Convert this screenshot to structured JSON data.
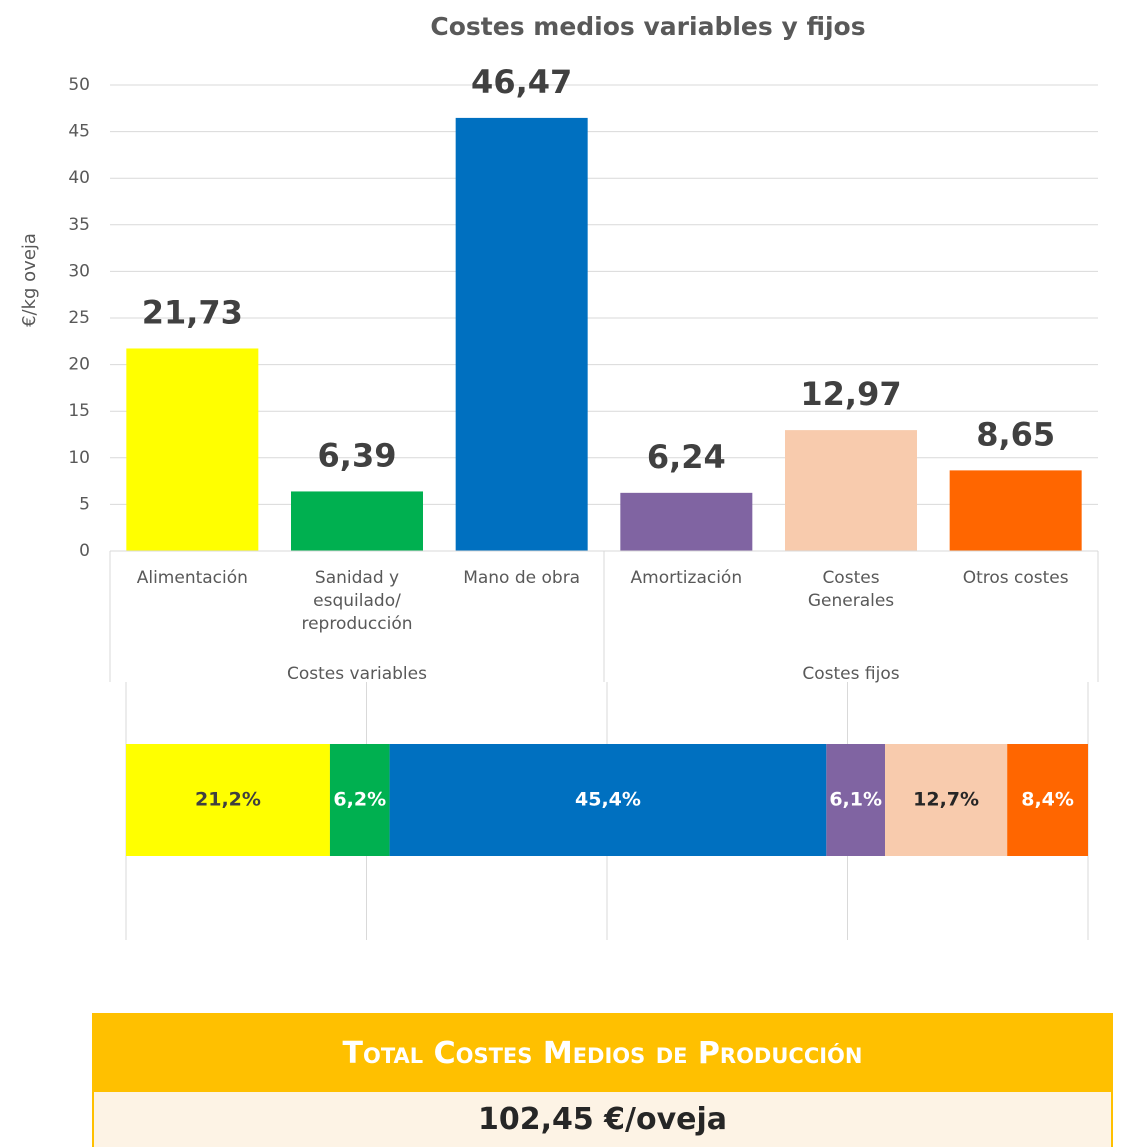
{
  "chart_data": [
    {
      "type": "bar",
      "title": "Costes medios variables y fijos",
      "y_label": "€/kg oveja",
      "categories": [
        "Alimentación",
        "Sanidad y\nesquilado/\nreproducción",
        "Mano de obra",
        "Amortización",
        "Costes\nGenerales",
        "Otros costes"
      ],
      "values": [
        21.73,
        6.39,
        46.47,
        6.24,
        12.97,
        8.65
      ],
      "value_labels": [
        "21,73",
        "6,39",
        "46,47",
        "6,24",
        "12,97",
        "8,65"
      ],
      "colors": [
        "#FFFF00",
        "#00B050",
        "#0070C0",
        "#8064A2",
        "#F8CBAD",
        "#FF6600"
      ],
      "groups": [
        "Costes variables",
        "Costes fijos"
      ],
      "ylim": [
        0,
        50
      ],
      "yticks": [
        0,
        5,
        10,
        15,
        20,
        25,
        30,
        35,
        40,
        45,
        50
      ],
      "grid": true
    },
    {
      "type": "stacked_hbar",
      "series": [
        {
          "color": "#FFFF00",
          "label_color": "#404040",
          "values": [
            21.2
          ],
          "value_labels": [
            "21,2%"
          ]
        },
        {
          "color": "#00B050",
          "label_color": "#ffffff",
          "values": [
            6.2
          ],
          "value_labels": [
            "6,2%"
          ]
        },
        {
          "color": "#0070C0",
          "label_color": "#ffffff",
          "values": [
            45.4
          ],
          "value_labels": [
            "45,4%"
          ]
        },
        {
          "color": "#8064A2",
          "label_color": "#ffffff",
          "values": [
            6.1
          ],
          "value_labels": [
            "6,1%"
          ]
        },
        {
          "color": "#F8CBAD",
          "label_color": "#262626",
          "values": [
            12.7
          ],
          "value_labels": [
            "12,7%"
          ]
        },
        {
          "color": "#FF6600",
          "label_color": "#ffffff",
          "values": [
            8.4
          ],
          "value_labels": [
            "8,4%"
          ]
        }
      ],
      "xlim": [
        0,
        100
      ],
      "xticks": [
        {
          "value": 0,
          "label": "0%"
        },
        {
          "value": 25,
          "label": "25%"
        },
        {
          "value": 50,
          "label": "50%"
        },
        {
          "value": 75,
          "label": "75%"
        },
        {
          "value": 100,
          "label": "100%"
        }
      ],
      "grid": true
    }
  ],
  "summary": {
    "title": "Total Costes Medios de Producción",
    "value": "102,45 €/oveja"
  }
}
